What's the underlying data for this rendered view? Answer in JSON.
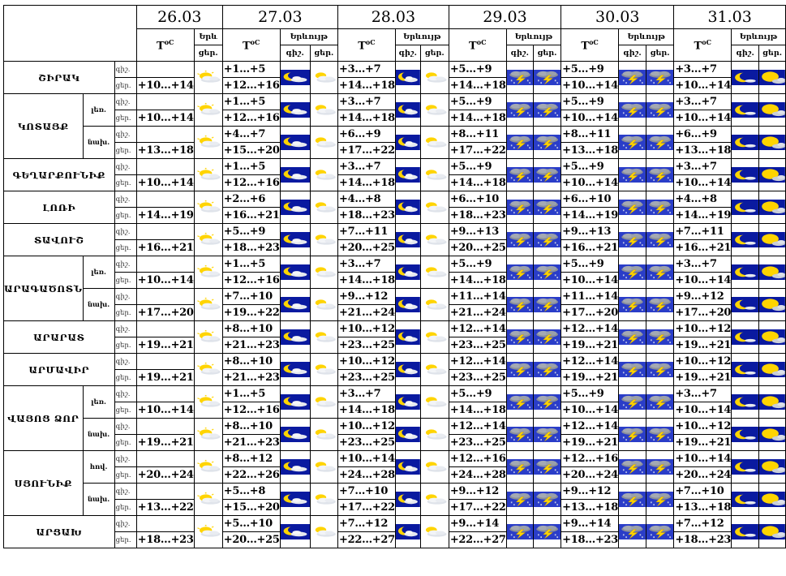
{
  "header": {
    "dates": [
      "26.03",
      "27.03",
      "28.03",
      "29.03",
      "30.03",
      "31.03"
    ],
    "temp_label": "T",
    "temp_unit": "oC",
    "sky_label_short": "Երև",
    "sky_label": "Երևույթ",
    "night": "գիշ.",
    "day": "ցեր."
  },
  "weather_icons": {
    "day1": "sun-cloud-icon",
    "night": "moon-cloud-icon",
    "day": "sun-cloud-icon",
    "storm": "thunderstorm-icon",
    "moon_clear": "moon-icon",
    "sun_partly": "sun-partly-cloudy-icon"
  },
  "colors": {
    "night_bg": "#0a1aa0",
    "storm_bg": "#2a3dc8",
    "sun": "#ffd400"
  },
  "regions": [
    {
      "name": "ՇԻՐԱԿ",
      "rows": [
        {
          "area": "",
          "t": [
            [
              "",
              "+10…+14"
            ],
            [
              "+1…+5",
              "+12…+16"
            ],
            [
              "+3…+7",
              "+14…+18"
            ],
            [
              "+5…+9",
              "+14…+18"
            ],
            [
              "+5…+9",
              "+10…+14"
            ],
            [
              "+3…+7",
              "+10…+14"
            ]
          ]
        }
      ]
    },
    {
      "name": "ԿՈՏԱՅՔ",
      "rows": [
        {
          "area": "լեռ.",
          "t": [
            [
              "",
              "+10…+14"
            ],
            [
              "+1…+5",
              "+12…+16"
            ],
            [
              "+3…+7",
              "+14…+18"
            ],
            [
              "+5…+9",
              "+14…+18"
            ],
            [
              "+5…+9",
              "+10…+14"
            ],
            [
              "+3…+7",
              "+10…+14"
            ]
          ]
        },
        {
          "area": "նախ.",
          "t": [
            [
              "",
              "+13…+18"
            ],
            [
              "+4…+7",
              "+15…+20"
            ],
            [
              "+6…+9",
              "+17…+22"
            ],
            [
              "+8…+11",
              "+17…+22"
            ],
            [
              "+8…+11",
              "+13…+18"
            ],
            [
              "+6…+9",
              "+13…+18"
            ]
          ]
        }
      ]
    },
    {
      "name": "ԳԵՂԱՐՔՈՒՆԻՔ",
      "rows": [
        {
          "area": "",
          "t": [
            [
              "",
              "+10…+14"
            ],
            [
              "+1…+5",
              "+12…+16"
            ],
            [
              "+3…+7",
              "+14…+18"
            ],
            [
              "+5…+9",
              "+14…+18"
            ],
            [
              "+5…+9",
              "+10…+14"
            ],
            [
              "+3…+7",
              "+10…+14"
            ]
          ]
        }
      ]
    },
    {
      "name": "ԼՈՌԻ",
      "rows": [
        {
          "area": "",
          "t": [
            [
              "",
              "+14…+19"
            ],
            [
              "+2…+6",
              "+16…+21"
            ],
            [
              "+4…+8",
              "+18…+23"
            ],
            [
              "+6…+10",
              "+18…+23"
            ],
            [
              "+6…+10",
              "+14…+19"
            ],
            [
              "+4…+8",
              "+14…+19"
            ]
          ]
        }
      ]
    },
    {
      "name": "ՏԱՎՈՒՇ",
      "rows": [
        {
          "area": "",
          "t": [
            [
              "",
              "+16…+21"
            ],
            [
              "+5…+9",
              "+18…+23"
            ],
            [
              "+7…+11",
              "+20…+25"
            ],
            [
              "+9…+13",
              "+20…+25"
            ],
            [
              "+9…+13",
              "+16…+21"
            ],
            [
              "+7…+11",
              "+16…+21"
            ]
          ]
        }
      ]
    },
    {
      "name": "ԱՐԱԳԱԾՈՏՆ",
      "rows": [
        {
          "area": "լեռ.",
          "t": [
            [
              "",
              "+10…+14"
            ],
            [
              "+1…+5",
              "+12…+16"
            ],
            [
              "+3…+7",
              "+14…+18"
            ],
            [
              "+5…+9",
              "+14…+18"
            ],
            [
              "+5…+9",
              "+10…+14"
            ],
            [
              "+3…+7",
              "+10…+14"
            ]
          ]
        },
        {
          "area": "նախ.",
          "t": [
            [
              "",
              "+17…+20"
            ],
            [
              "+7…+10",
              "+19…+22"
            ],
            [
              "+9…+12",
              "+21…+24"
            ],
            [
              "+11…+14",
              "+21…+24"
            ],
            [
              "+11…+14",
              "+17…+20"
            ],
            [
              "+9…+12",
              "+17…+20"
            ]
          ]
        }
      ]
    },
    {
      "name": "ԱՐԱՐԱՏ",
      "rows": [
        {
          "area": "",
          "t": [
            [
              "",
              "+19…+21"
            ],
            [
              "+8…+10",
              "+21…+23"
            ],
            [
              "+10…+12",
              "+23…+25"
            ],
            [
              "+12…+14",
              "+23…+25"
            ],
            [
              "+12…+14",
              "+19…+21"
            ],
            [
              "+10…+12",
              "+19…+21"
            ]
          ]
        }
      ]
    },
    {
      "name": "ԱՐՄԱՎԻՐ",
      "rows": [
        {
          "area": "",
          "t": [
            [
              "",
              "+19…+21"
            ],
            [
              "+8…+10",
              "+21…+23"
            ],
            [
              "+10…+12",
              "+23…+25"
            ],
            [
              "+12…+14",
              "+23…+25"
            ],
            [
              "+12…+14",
              "+19…+21"
            ],
            [
              "+10…+12",
              "+19…+21"
            ]
          ]
        }
      ]
    },
    {
      "name": "ՎԱՅՈՑ ՁՈՐ",
      "rows": [
        {
          "area": "լեռ.",
          "t": [
            [
              "",
              "+10…+14"
            ],
            [
              "+1…+5",
              "+12…+16"
            ],
            [
              "+3…+7",
              "+14…+18"
            ],
            [
              "+5…+9",
              "+14…+18"
            ],
            [
              "+5…+9",
              "+10…+14"
            ],
            [
              "+3…+7",
              "+10…+14"
            ]
          ]
        },
        {
          "area": "նախ.",
          "t": [
            [
              "",
              "+19…+21"
            ],
            [
              "+8…+10",
              "+21…+23"
            ],
            [
              "+10…+12",
              "+23…+25"
            ],
            [
              "+12…+14",
              "+23…+25"
            ],
            [
              "+12…+14",
              "+19…+21"
            ],
            [
              "+10…+12",
              "+19…+21"
            ]
          ]
        }
      ]
    },
    {
      "name": "ՍՅՈՒՆԻՔ",
      "rows": [
        {
          "area": "հով.",
          "t": [
            [
              "",
              "+20…+24"
            ],
            [
              "+8…+12",
              "+22…+26"
            ],
            [
              "+10…+14",
              "+24…+28"
            ],
            [
              "+12…+16",
              "+24…+28"
            ],
            [
              "+12…+16",
              "+20…+24"
            ],
            [
              "+10…+14",
              "+20…+24"
            ]
          ]
        },
        {
          "area": "նախ.",
          "t": [
            [
              "",
              "+13…+22"
            ],
            [
              "+5…+8",
              "+15…+20"
            ],
            [
              "+7…+10",
              "+17…+22"
            ],
            [
              "+9…+12",
              "+17…+22"
            ],
            [
              "+9…+12",
              "+13…+18"
            ],
            [
              "+7…+10",
              "+13…+18"
            ]
          ]
        }
      ]
    },
    {
      "name": "ԱՐՑԱԽ",
      "rows": [
        {
          "area": "",
          "t": [
            [
              "",
              "+18…+23"
            ],
            [
              "+5…+10",
              "+20…+25"
            ],
            [
              "+7…+12",
              "+22…+27"
            ],
            [
              "+9…+14",
              "+22…+27"
            ],
            [
              "+9…+14",
              "+18…+23"
            ],
            [
              "+7…+12",
              "+18…+23"
            ]
          ]
        }
      ]
    }
  ]
}
